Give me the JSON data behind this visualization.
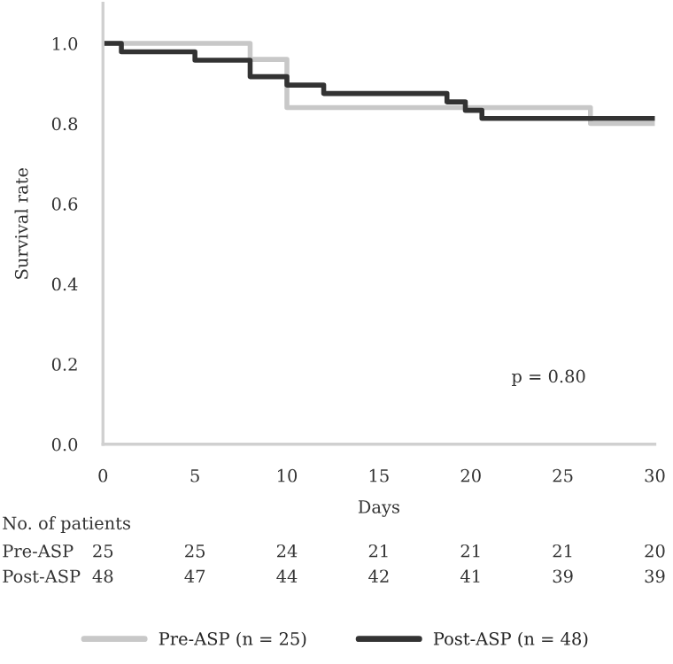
{
  "chart_data": {
    "type": "step",
    "xlabel": "Days",
    "ylabel": "Survival rate",
    "series": [
      {
        "name": "Pre-ASP (n = 25)",
        "color": "#c8c8c8",
        "x": [
          0,
          8,
          10,
          26.5,
          30
        ],
        "values": [
          1.0,
          0.96,
          0.84,
          0.8,
          0.8
        ]
      },
      {
        "name": "Post-ASP (n = 48)",
        "color": "#333333",
        "x": [
          0,
          1,
          5,
          8,
          10,
          12,
          18.7,
          19.7,
          20.6,
          30
        ],
        "values": [
          1.0,
          0.979,
          0.958,
          0.917,
          0.896,
          0.875,
          0.854,
          0.833,
          0.813,
          0.813
        ]
      }
    ],
    "xlim": [
      0,
      30
    ],
    "xticks": [
      0,
      5,
      10,
      15,
      20,
      25,
      30
    ],
    "ylim": [
      0,
      1.1
    ],
    "yticks": [
      {
        "value": 0,
        "label": "0.0"
      },
      0.2,
      0.4,
      0.6,
      0.8,
      {
        "value": 1,
        "label": "1.0"
      }
    ],
    "annotations": [
      "p = 0.80",
      "No. of patients",
      "Pre-ASP",
      "25",
      "25",
      "24",
      "21",
      "21",
      "21",
      "20",
      "Post-ASP",
      "48",
      "47",
      "44",
      "42",
      "41",
      "39",
      "39"
    ],
    "grid": false,
    "legend": "bottom",
    "line_style": "solid",
    "marker": "none"
  }
}
